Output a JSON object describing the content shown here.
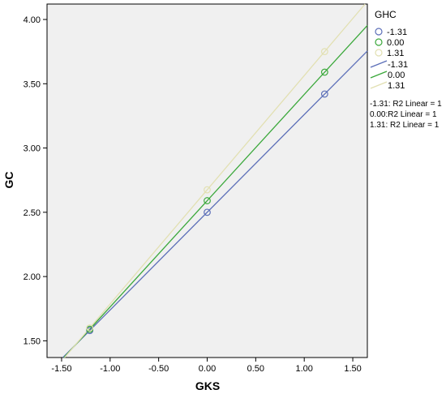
{
  "chart_data": {
    "type": "scatter",
    "xlabel": "GKS",
    "ylabel": "GC",
    "xlim": [
      -1.65,
      1.65
    ],
    "ylim": [
      1.37,
      4.12
    ],
    "grid": false,
    "x_ticks": [
      {
        "value": -1.5,
        "label": "-1.50"
      },
      {
        "value": -1.0,
        "label": "-1.00"
      },
      {
        "value": -0.5,
        "label": "-0.50"
      },
      {
        "value": 0.0,
        "label": "0.00"
      },
      {
        "value": 0.5,
        "label": "0.50"
      },
      {
        "value": 1.0,
        "label": "1.00"
      },
      {
        "value": 1.5,
        "label": "1.50"
      }
    ],
    "y_ticks": [
      {
        "value": 1.5,
        "label": "1.50"
      },
      {
        "value": 2.0,
        "label": "2.00"
      },
      {
        "value": 2.5,
        "label": "2.50"
      },
      {
        "value": 3.0,
        "label": "3.00"
      },
      {
        "value": 3.5,
        "label": "3.50"
      },
      {
        "value": 4.0,
        "label": "4.00"
      }
    ],
    "legend_title": "GHC",
    "legend_position": "right",
    "plot_background": "#f0f0f0",
    "series": [
      {
        "name": "-1.31",
        "color": "#5c6fb8",
        "x": [
          -1.21,
          0.0,
          1.21
        ],
        "y": [
          1.58,
          2.5,
          3.42
        ],
        "fit_label": "-1.31: R2 Linear = 1"
      },
      {
        "name": "0.00",
        "color": "#3aa83a",
        "x": [
          -1.21,
          0.0,
          1.21
        ],
        "y": [
          1.59,
          2.59,
          3.59
        ],
        "fit_label": "0.00:R2 Linear = 1"
      },
      {
        "name": "1.31",
        "color": "#e2e0b2",
        "x": [
          -1.21,
          0.0,
          1.21
        ],
        "y": [
          1.6,
          2.675,
          3.75
        ],
        "fit_label": "1.31: R2 Linear = 1"
      }
    ]
  }
}
